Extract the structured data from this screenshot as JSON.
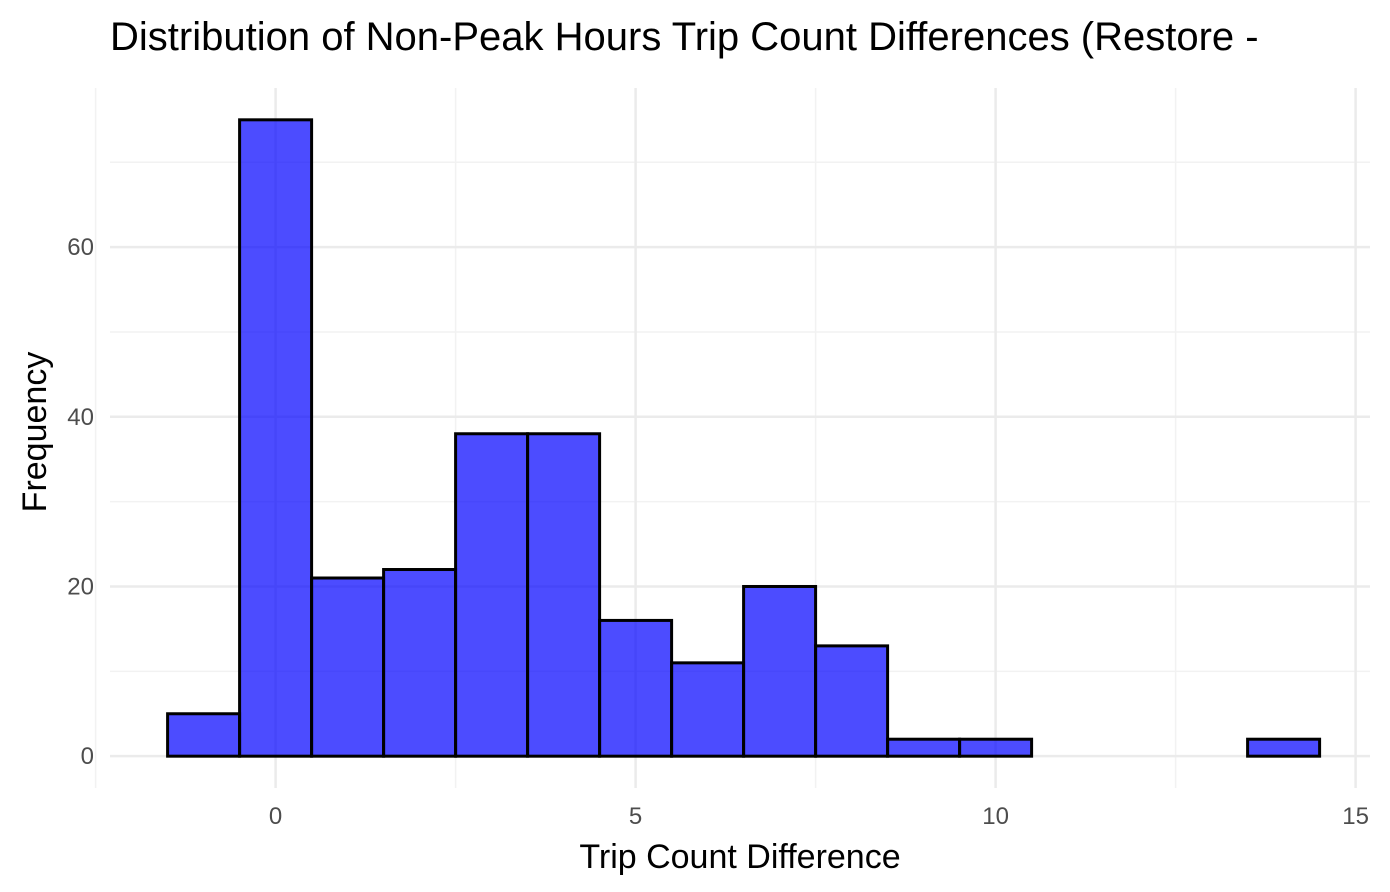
{
  "chart_data": {
    "type": "bar",
    "title": "Distribution of Non-Peak Hours Trip Count Differences (Restore -",
    "xlabel": "Trip Count Difference",
    "ylabel": "Frequency",
    "bin_width": 1,
    "bins": [
      {
        "center": -1,
        "count": 5
      },
      {
        "center": 0,
        "count": 75
      },
      {
        "center": 1,
        "count": 21
      },
      {
        "center": 2,
        "count": 22
      },
      {
        "center": 3,
        "count": 38
      },
      {
        "center": 4,
        "count": 38
      },
      {
        "center": 5,
        "count": 16
      },
      {
        "center": 6,
        "count": 11
      },
      {
        "center": 7,
        "count": 20
      },
      {
        "center": 8,
        "count": 13
      },
      {
        "center": 9,
        "count": 2
      },
      {
        "center": 10,
        "count": 2
      },
      {
        "center": 11,
        "count": 0
      },
      {
        "center": 12,
        "count": 0
      },
      {
        "center": 13,
        "count": 0
      },
      {
        "center": 14,
        "count": 2
      }
    ],
    "xlim": [
      -2.3,
      15.2
    ],
    "ylim": [
      -3.75,
      78.75
    ],
    "x_ticks": [
      0,
      5,
      10,
      15
    ],
    "x_tick_labels": [
      "0",
      "5",
      "10",
      "15"
    ],
    "y_ticks": [
      0,
      20,
      40,
      60
    ],
    "y_tick_labels": [
      "0",
      "20",
      "40",
      "60"
    ],
    "x_minor_ticks": [
      -2.5,
      2.5,
      7.5,
      12.5
    ],
    "y_minor_ticks": [
      10,
      30,
      50,
      70
    ],
    "grid": true,
    "legend": "none",
    "colors": {
      "bar_fill": "#0000ff",
      "bar_fill_opacity": 0.7,
      "bar_stroke": "#000000",
      "grid_major": "#ebebeb",
      "grid_minor": "#f2f2f2",
      "tick_label": "#4d4d4d"
    }
  }
}
